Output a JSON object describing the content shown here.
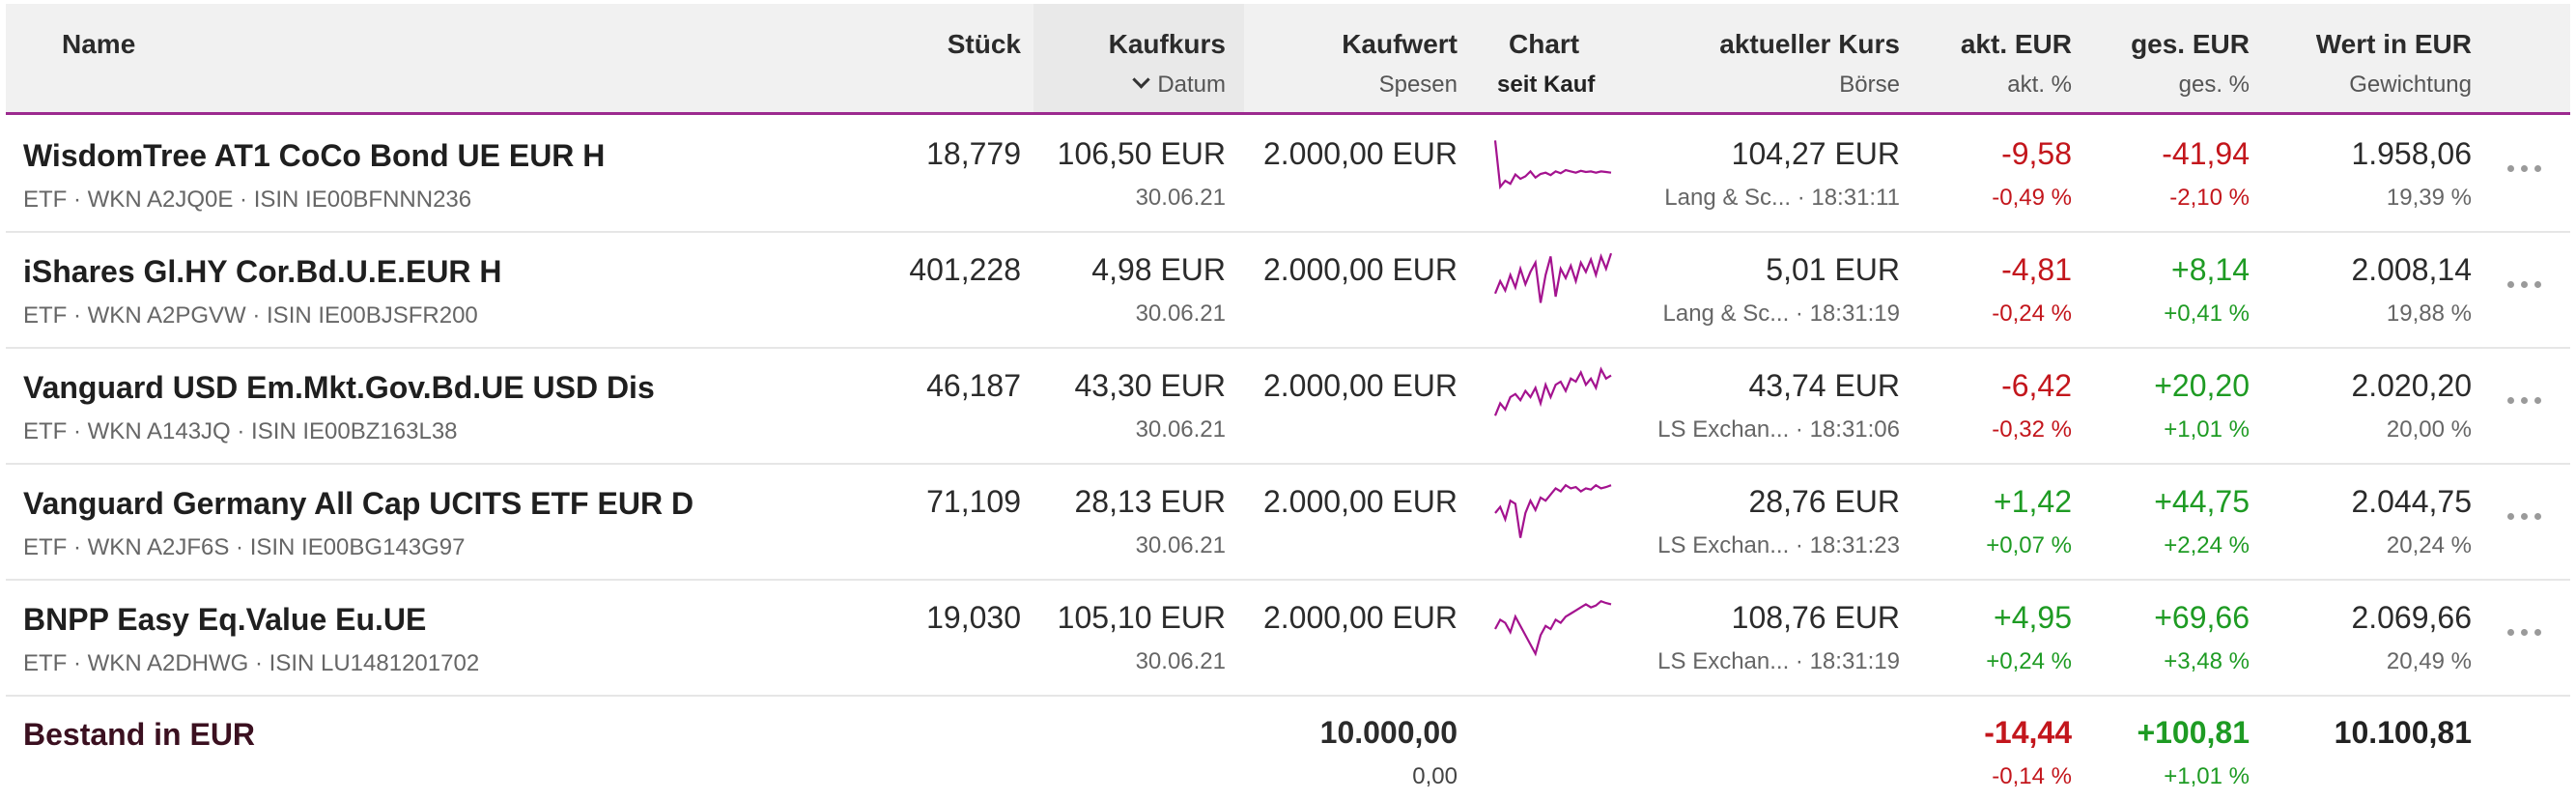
{
  "header": {
    "name": "Name",
    "stueck": "Stück",
    "kaufkurs": "Kaufkurs",
    "datum": "Datum",
    "kaufwert": "Kaufwert",
    "spesen": "Spesen",
    "chart": "Chart",
    "seit_kauf": "seit Kauf",
    "aktueller_kurs": "aktueller Kurs",
    "boerse": "Börse",
    "akt_eur": "akt. EUR",
    "akt_pct": "akt. %",
    "ges_eur": "ges. EUR",
    "ges_pct": "ges. %",
    "wert_eur": "Wert in EUR",
    "gewichtung": "Gewichtung"
  },
  "colors": {
    "accent": "#9c2a8f",
    "negative": "#c3161c",
    "positive": "#1e9b23",
    "spark": "#a4138f"
  },
  "rows": [
    {
      "name": "WisdomTree AT1 CoCo Bond UE EUR H",
      "meta": "ETF · WKN A2JQ0E · ISIN IE00BFNNN236",
      "stueck": "18,779",
      "kaufkurs": "106,50 EUR",
      "datum": "30.06.21",
      "kaufwert": "2.000,00 EUR",
      "kurs": "104,27 EUR",
      "boerse": "Lang & Sc... · 18:31:11",
      "akt_eur": "-9,58",
      "akt_pct": "-0,49 %",
      "akt_sign": "neg",
      "ges_eur": "-41,94",
      "ges_pct": "-2,10 %",
      "ges_sign": "neg",
      "wert": "1.958,06",
      "gewichtung": "19,39 %",
      "spark": [
        0.1,
        0.85,
        0.75,
        0.8,
        0.65,
        0.72,
        0.68,
        0.6,
        0.7,
        0.64,
        0.62,
        0.66,
        0.6,
        0.63,
        0.58,
        0.6,
        0.62,
        0.59,
        0.61,
        0.6,
        0.62,
        0.6,
        0.61,
        0.62
      ]
    },
    {
      "name": "iShares Gl.HY Cor.Bd.U.E.EUR H",
      "meta": "ETF · WKN A2PGVW · ISIN IE00BJSFR200",
      "stueck": "401,228",
      "kaufkurs": "4,98 EUR",
      "datum": "30.06.21",
      "kaufwert": "2.000,00 EUR",
      "kurs": "5,01 EUR",
      "boerse": "Lang & Sc... · 18:31:19",
      "akt_eur": "-4,81",
      "akt_pct": "-0,24 %",
      "akt_sign": "neg",
      "ges_eur": "+8,14",
      "ges_pct": "+0,41 %",
      "ges_sign": "pos",
      "wert": "2.008,14",
      "gewichtung": "19,88 %",
      "spark": [
        0.7,
        0.5,
        0.65,
        0.4,
        0.6,
        0.3,
        0.55,
        0.35,
        0.2,
        0.85,
        0.4,
        0.1,
        0.75,
        0.3,
        0.45,
        0.25,
        0.5,
        0.2,
        0.35,
        0.15,
        0.4,
        0.1,
        0.3,
        0.05
      ]
    },
    {
      "name": "Vanguard USD Em.Mkt.Gov.Bd.UE USD Dis",
      "meta": "ETF · WKN A143JQ · ISIN IE00BZ163L38",
      "stueck": "46,187",
      "kaufkurs": "43,30 EUR",
      "datum": "30.06.21",
      "kaufwert": "2.000,00 EUR",
      "kurs": "43,74 EUR",
      "boerse": "LS Exchan... · 18:31:06",
      "akt_eur": "-6,42",
      "akt_pct": "-0,32 %",
      "akt_sign": "neg",
      "ges_eur": "+20,20",
      "ges_pct": "+1,01 %",
      "ges_sign": "pos",
      "wert": "2.020,20",
      "gewichtung": "20,00 %",
      "spark": [
        0.8,
        0.6,
        0.7,
        0.5,
        0.45,
        0.55,
        0.4,
        0.5,
        0.35,
        0.6,
        0.3,
        0.5,
        0.3,
        0.25,
        0.4,
        0.2,
        0.25,
        0.1,
        0.3,
        0.2,
        0.35,
        0.05,
        0.2,
        0.15
      ]
    },
    {
      "name": "Vanguard Germany All Cap UCITS ETF EUR D",
      "meta": "ETF · WKN A2JF6S · ISIN IE00BG143G97",
      "stueck": "71,109",
      "kaufkurs": "28,13 EUR",
      "datum": "30.06.21",
      "kaufwert": "2.000,00 EUR",
      "kurs": "28,76 EUR",
      "boerse": "LS Exchan... · 18:31:23",
      "akt_eur": "+1,42",
      "akt_pct": "+0,07 %",
      "akt_sign": "pos",
      "ges_eur": "+44,75",
      "ges_pct": "+2,24 %",
      "ges_sign": "pos",
      "wert": "2.044,75",
      "gewichtung": "20,24 %",
      "spark": [
        0.5,
        0.4,
        0.6,
        0.3,
        0.35,
        0.9,
        0.5,
        0.3,
        0.45,
        0.25,
        0.3,
        0.2,
        0.1,
        0.15,
        0.05,
        0.1,
        0.08,
        0.15,
        0.1,
        0.12,
        0.05,
        0.1,
        0.08,
        0.05
      ]
    },
    {
      "name": "BNPP Easy Eq.Value Eu.UE",
      "meta": "ETF · WKN A2DHWG · ISIN LU1481201702",
      "stueck": "19,030",
      "kaufkurs": "105,10 EUR",
      "datum": "30.06.21",
      "kaufwert": "2.000,00 EUR",
      "kurs": "108,76 EUR",
      "boerse": "LS Exchan... · 18:31:19",
      "akt_eur": "+4,95",
      "akt_pct": "+0,24 %",
      "akt_sign": "pos",
      "ges_eur": "+69,66",
      "ges_pct": "+3,48 %",
      "ges_sign": "pos",
      "wert": "2.069,66",
      "gewichtung": "20,49 %",
      "spark": [
        0.5,
        0.35,
        0.4,
        0.55,
        0.3,
        0.45,
        0.6,
        0.75,
        0.9,
        0.6,
        0.45,
        0.5,
        0.35,
        0.4,
        0.3,
        0.25,
        0.2,
        0.15,
        0.1,
        0.15,
        0.12,
        0.05,
        0.08,
        0.1
      ]
    }
  ],
  "total": {
    "label": "Bestand in EUR",
    "kaufwert": "10.000,00",
    "spesen": "0,00",
    "akt_eur": "-14,44",
    "akt_pct": "-0,14 %",
    "ges_eur": "+100,81",
    "ges_pct": "+1,01 %",
    "wert": "10.100,81"
  }
}
